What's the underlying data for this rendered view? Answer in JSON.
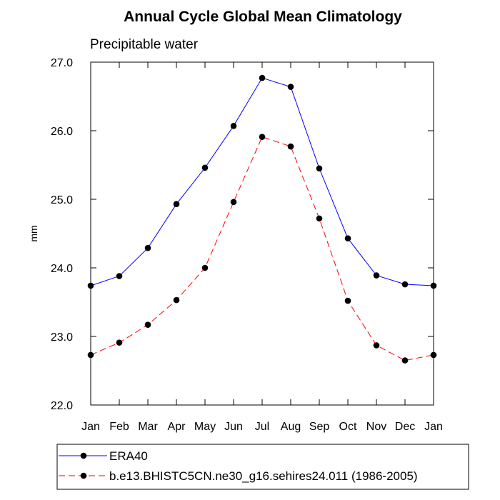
{
  "chart_data": {
    "type": "line",
    "title": "Annual Cycle Global Mean Climatology",
    "subtitle": "Precipitable water",
    "xlabel": "",
    "ylabel": "mm",
    "categories": [
      "Jan",
      "Feb",
      "Mar",
      "Apr",
      "May",
      "Jun",
      "Jul",
      "Aug",
      "Sep",
      "Oct",
      "Nov",
      "Dec",
      "Jan"
    ],
    "ylim": [
      22.0,
      27.0
    ],
    "yticks": [
      "22.0",
      "23.0",
      "24.0",
      "25.0",
      "26.0",
      "27.0"
    ],
    "grid": false,
    "legend_position": "bottom",
    "series": [
      {
        "name": "ERA40",
        "color": "#0000ff",
        "dash": "solid",
        "values": [
          23.74,
          23.88,
          24.29,
          24.93,
          25.46,
          26.07,
          26.77,
          26.64,
          25.45,
          24.43,
          23.89,
          23.76,
          23.74
        ]
      },
      {
        "name": "b.e13.BHISTC5CN.ne30_g16.sehires24.011 (1986-2005)",
        "color": "#ff0000",
        "dash": "dashed",
        "values": [
          22.73,
          22.91,
          23.17,
          23.53,
          24.0,
          24.96,
          25.91,
          25.77,
          24.72,
          23.52,
          22.87,
          22.65,
          22.73
        ]
      }
    ]
  }
}
